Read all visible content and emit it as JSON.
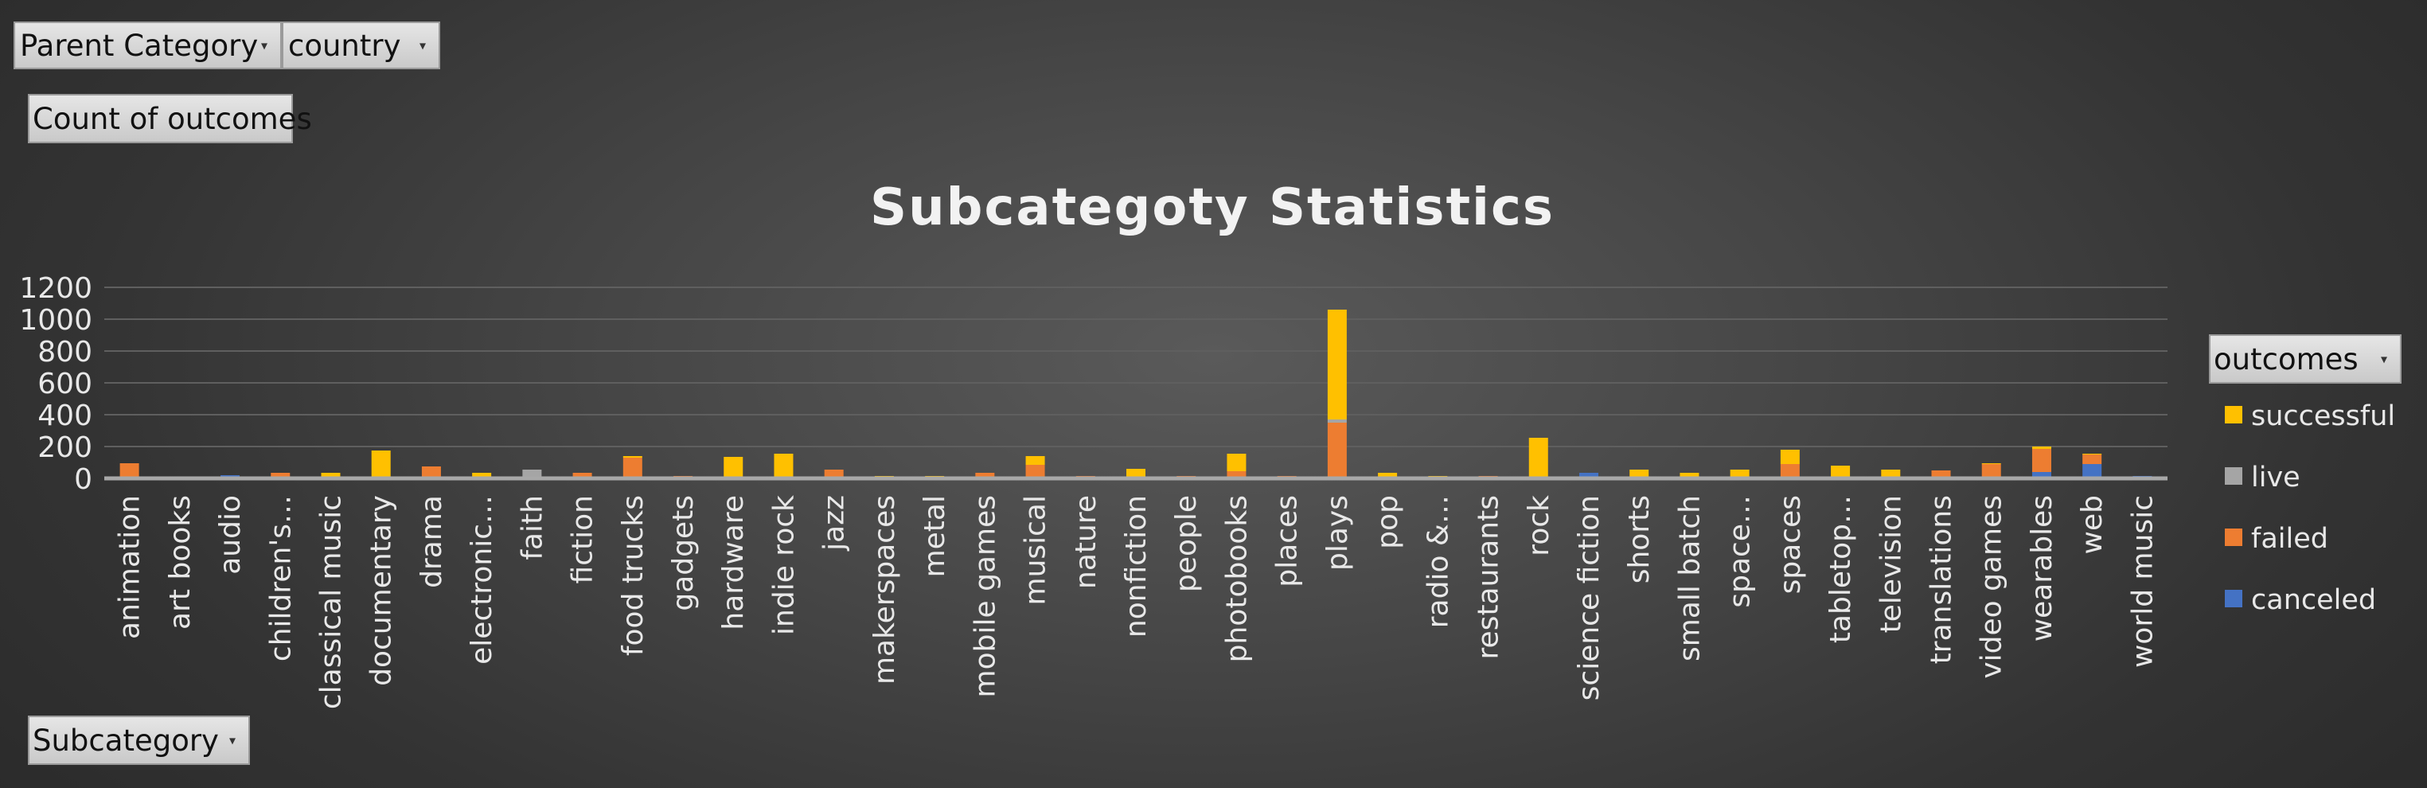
{
  "filters": {
    "parent_category": "Parent Category",
    "country": "country",
    "values_field": "Count of outcomes",
    "axis_field": "Subcategory",
    "legend_field": "outcomes"
  },
  "colors": {
    "successful": "#ffc000",
    "live": "#a5a5a5",
    "failed": "#ed7d31",
    "canceled": "#4472c4"
  },
  "chart_data": {
    "type": "bar",
    "stacked": true,
    "title": "Subcategoty Statistics",
    "ylim": [
      0,
      1200
    ],
    "yticks": [
      0,
      200,
      400,
      600,
      800,
      1000,
      1200
    ],
    "grid": true,
    "legend_position": "right",
    "categories": [
      "animation",
      "art books",
      "audio",
      "children's…",
      "classical music",
      "documentary",
      "drama",
      "electronic…",
      "faith",
      "fiction",
      "food trucks",
      "gadgets",
      "hardware",
      "indie rock",
      "jazz",
      "makerspaces",
      "metal",
      "mobile games",
      "musical",
      "nature",
      "nonfiction",
      "people",
      "photobooks",
      "places",
      "plays",
      "pop",
      "radio &…",
      "restaurants",
      "rock",
      "science fiction",
      "shorts",
      "small batch",
      "space…",
      "spaces",
      "tabletop…",
      "television",
      "translations",
      "video games",
      "wearables",
      "web",
      "world music"
    ],
    "series": [
      {
        "name": "canceled",
        "values": [
          0,
          10,
          20,
          0,
          0,
          0,
          0,
          0,
          0,
          0,
          5,
          0,
          0,
          0,
          0,
          0,
          0,
          0,
          10,
          0,
          0,
          0,
          0,
          0,
          0,
          0,
          0,
          0,
          0,
          35,
          0,
          0,
          0,
          10,
          0,
          0,
          0,
          0,
          40,
          90,
          15
        ]
      },
      {
        "name": "failed",
        "values": [
          95,
          0,
          0,
          35,
          0,
          5,
          75,
          0,
          0,
          35,
          125,
          15,
          0,
          5,
          55,
          10,
          0,
          35,
          75,
          15,
          10,
          15,
          45,
          15,
          350,
          5,
          0,
          15,
          0,
          0,
          5,
          5,
          5,
          80,
          10,
          0,
          50,
          90,
          145,
          60,
          0
        ]
      },
      {
        "name": "live",
        "values": [
          0,
          0,
          0,
          0,
          0,
          0,
          0,
          0,
          55,
          0,
          0,
          0,
          0,
          0,
          0,
          0,
          0,
          0,
          0,
          0,
          0,
          0,
          0,
          0,
          20,
          0,
          0,
          0,
          5,
          0,
          0,
          0,
          0,
          0,
          0,
          0,
          0,
          0,
          0,
          0,
          0
        ]
      },
      {
        "name": "successful",
        "values": [
          0,
          0,
          0,
          0,
          35,
          170,
          0,
          35,
          0,
          0,
          10,
          0,
          135,
          150,
          0,
          5,
          15,
          0,
          55,
          0,
          50,
          0,
          110,
          0,
          690,
          30,
          15,
          0,
          250,
          0,
          50,
          30,
          50,
          90,
          70,
          55,
          0,
          5,
          15,
          5,
          0
        ]
      }
    ]
  }
}
